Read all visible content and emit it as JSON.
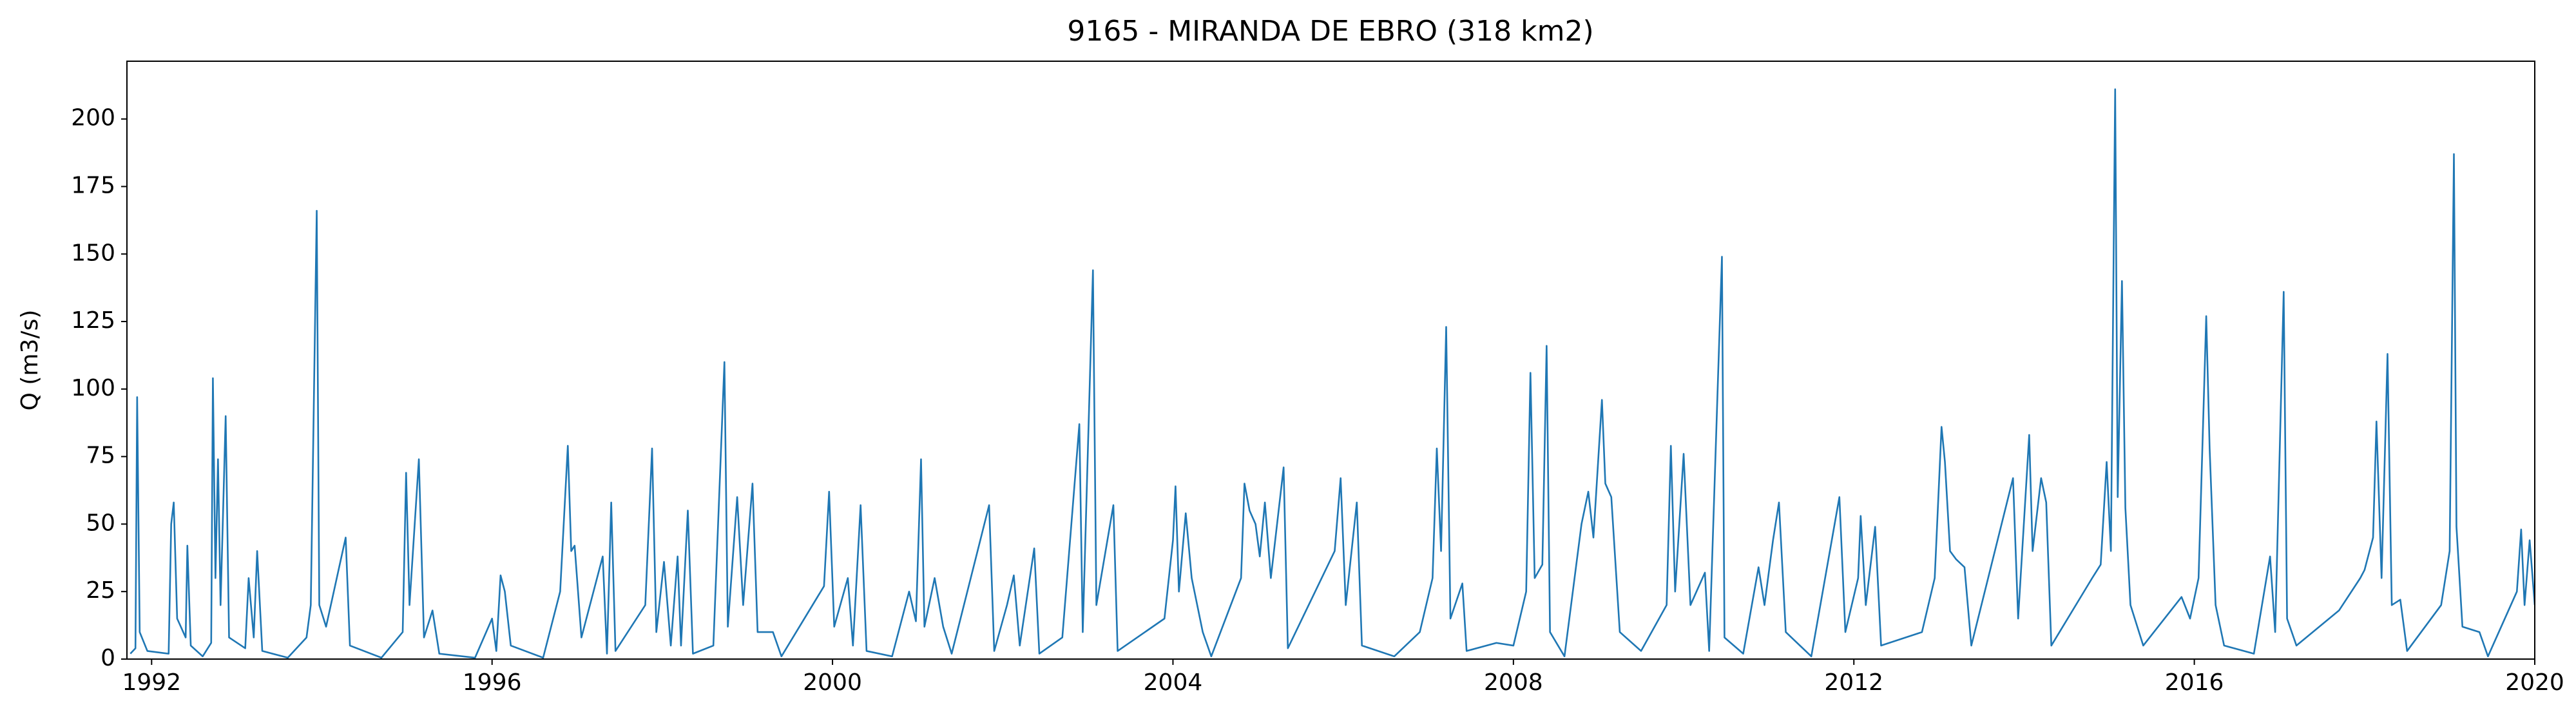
{
  "chart_data": {
    "type": "line",
    "title": "9165 - MIRANDA DE EBRO (318 km2)",
    "y_label": "Q (m3/s)",
    "xlim": [
      1991.71,
      2020
    ],
    "xticks": [
      1992,
      1996,
      2000,
      2004,
      2008,
      2012,
      2016,
      2020
    ],
    "ylim": [
      0,
      221.4
    ],
    "yticks": [
      0,
      25,
      50,
      75,
      100,
      125,
      150,
      175,
      200
    ],
    "grid": false,
    "series": [
      {
        "color": "#1f77b4",
        "x": [
          1991.75,
          1991.81,
          1991.83,
          1991.86,
          1991.95,
          1992.2,
          1992.23,
          1992.26,
          1992.3,
          1992.4,
          1992.42,
          1992.46,
          1992.6,
          1992.7,
          1992.72,
          1992.75,
          1992.78,
          1992.81,
          1992.87,
          1992.91,
          1993.1,
          1993.14,
          1993.2,
          1993.24,
          1993.3,
          1993.6,
          1993.82,
          1993.87,
          1993.94,
          1993.97,
          1994.05,
          1994.28,
          1994.33,
          1994.7,
          1994.95,
          1994.99,
          1995.03,
          1995.14,
          1995.2,
          1995.3,
          1995.38,
          1995.8,
          1996.0,
          1996.05,
          1996.1,
          1996.15,
          1996.22,
          1996.6,
          1996.8,
          1996.89,
          1996.93,
          1996.97,
          1997.05,
          1997.3,
          1997.35,
          1997.4,
          1997.45,
          1997.8,
          1997.88,
          1997.93,
          1998.02,
          1998.1,
          1998.18,
          1998.22,
          1998.3,
          1998.36,
          1998.6,
          1998.73,
          1998.77,
          1998.88,
          1998.95,
          1999.06,
          1999.12,
          1999.3,
          1999.4,
          1999.9,
          1999.96,
          2000.02,
          2000.18,
          2000.24,
          2000.33,
          2000.4,
          2000.7,
          2000.9,
          2000.98,
          2001.04,
          2001.08,
          2001.2,
          2001.3,
          2001.4,
          2001.84,
          2001.9,
          2002.05,
          2002.13,
          2002.2,
          2002.37,
          2002.43,
          2002.7,
          2002.9,
          2002.94,
          2003.06,
          2003.1,
          2003.3,
          2003.35,
          2003.9,
          2004.0,
          2004.03,
          2004.07,
          2004.15,
          2004.22,
          2004.35,
          2004.45,
          2004.8,
          2004.84,
          2004.9,
          2004.97,
          2005.02,
          2005.08,
          2005.15,
          2005.3,
          2005.35,
          2005.9,
          2005.97,
          2006.03,
          2006.16,
          2006.22,
          2006.6,
          2006.9,
          2007.05,
          2007.1,
          2007.15,
          2007.21,
          2007.26,
          2007.4,
          2007.45,
          2007.8,
          2008.0,
          2008.15,
          2008.2,
          2008.25,
          2008.34,
          2008.39,
          2008.43,
          2008.6,
          2008.8,
          2008.88,
          2008.94,
          2009.04,
          2009.08,
          2009.15,
          2009.25,
          2009.5,
          2009.8,
          2009.85,
          2009.9,
          2010.0,
          2010.08,
          2010.25,
          2010.3,
          2010.45,
          2010.48,
          2010.7,
          2010.88,
          2010.95,
          2011.05,
          2011.12,
          2011.2,
          2011.5,
          2011.83,
          2011.9,
          2012.05,
          2012.08,
          2012.14,
          2012.25,
          2012.32,
          2012.8,
          2012.95,
          2013.03,
          2013.07,
          2013.13,
          2013.2,
          2013.3,
          2013.38,
          2013.87,
          2013.93,
          2014.06,
          2014.1,
          2014.2,
          2014.26,
          2014.32,
          2014.8,
          2014.9,
          2014.97,
          2015.02,
          2015.07,
          2015.1,
          2015.15,
          2015.19,
          2015.25,
          2015.4,
          2015.85,
          2015.95,
          2016.05,
          2016.14,
          2016.18,
          2016.25,
          2016.35,
          2016.7,
          2016.89,
          2016.95,
          2017.05,
          2017.09,
          2017.2,
          2017.7,
          2017.95,
          2018.0,
          2018.1,
          2018.14,
          2018.2,
          2018.27,
          2018.32,
          2018.42,
          2018.5,
          2018.9,
          2019.0,
          2019.05,
          2019.08,
          2019.15,
          2019.35,
          2019.45,
          2019.79,
          2019.84,
          2019.88,
          2019.94,
          2020.0
        ],
        "values": [
          2,
          4,
          97,
          10,
          3,
          2,
          50,
          58,
          15,
          8,
          42,
          5,
          1,
          6,
          104,
          30,
          74,
          20,
          90,
          8,
          4,
          30,
          8,
          40,
          3,
          0.5,
          8,
          20,
          166,
          20,
          12,
          45,
          5,
          0.5,
          10,
          69,
          20,
          74,
          8,
          18,
          2,
          0.5,
          15,
          3,
          31,
          25,
          5,
          0.5,
          25,
          79,
          40,
          42,
          8,
          38,
          2,
          58,
          3,
          20,
          78,
          10,
          36,
          5,
          38,
          5,
          55,
          2,
          5,
          110,
          12,
          60,
          20,
          65,
          10,
          10,
          1,
          27,
          62,
          12,
          30,
          5,
          57,
          3,
          1,
          25,
          14,
          74,
          12,
          30,
          12,
          2,
          57,
          3,
          20,
          31,
          5,
          41,
          2,
          8,
          87,
          10,
          144,
          20,
          57,
          3,
          15,
          44,
          64,
          25,
          54,
          30,
          10,
          1,
          30,
          65,
          55,
          50,
          38,
          58,
          30,
          71,
          4,
          40,
          67,
          20,
          58,
          5,
          1,
          10,
          30,
          78,
          40,
          123,
          15,
          28,
          3,
          6,
          5,
          25,
          106,
          30,
          35,
          116,
          10,
          1,
          50,
          62,
          45,
          96,
          65,
          60,
          10,
          3,
          20,
          79,
          25,
          76,
          20,
          32,
          3,
          149,
          8,
          2,
          34,
          20,
          44,
          58,
          10,
          1,
          60,
          10,
          30,
          53,
          20,
          49,
          5,
          10,
          30,
          86,
          73,
          40,
          37,
          34,
          5,
          67,
          15,
          83,
          40,
          67,
          58,
          5,
          30,
          35,
          73,
          40,
          211,
          60,
          140,
          56,
          20,
          5,
          23,
          15,
          30,
          127,
          78,
          20,
          5,
          2,
          38,
          10,
          136,
          15,
          5,
          18,
          30,
          33,
          45,
          88,
          30,
          113,
          20,
          22,
          3,
          20,
          40,
          187,
          49,
          12,
          10,
          1,
          25,
          48,
          20,
          44,
          20
        ]
      }
    ]
  }
}
